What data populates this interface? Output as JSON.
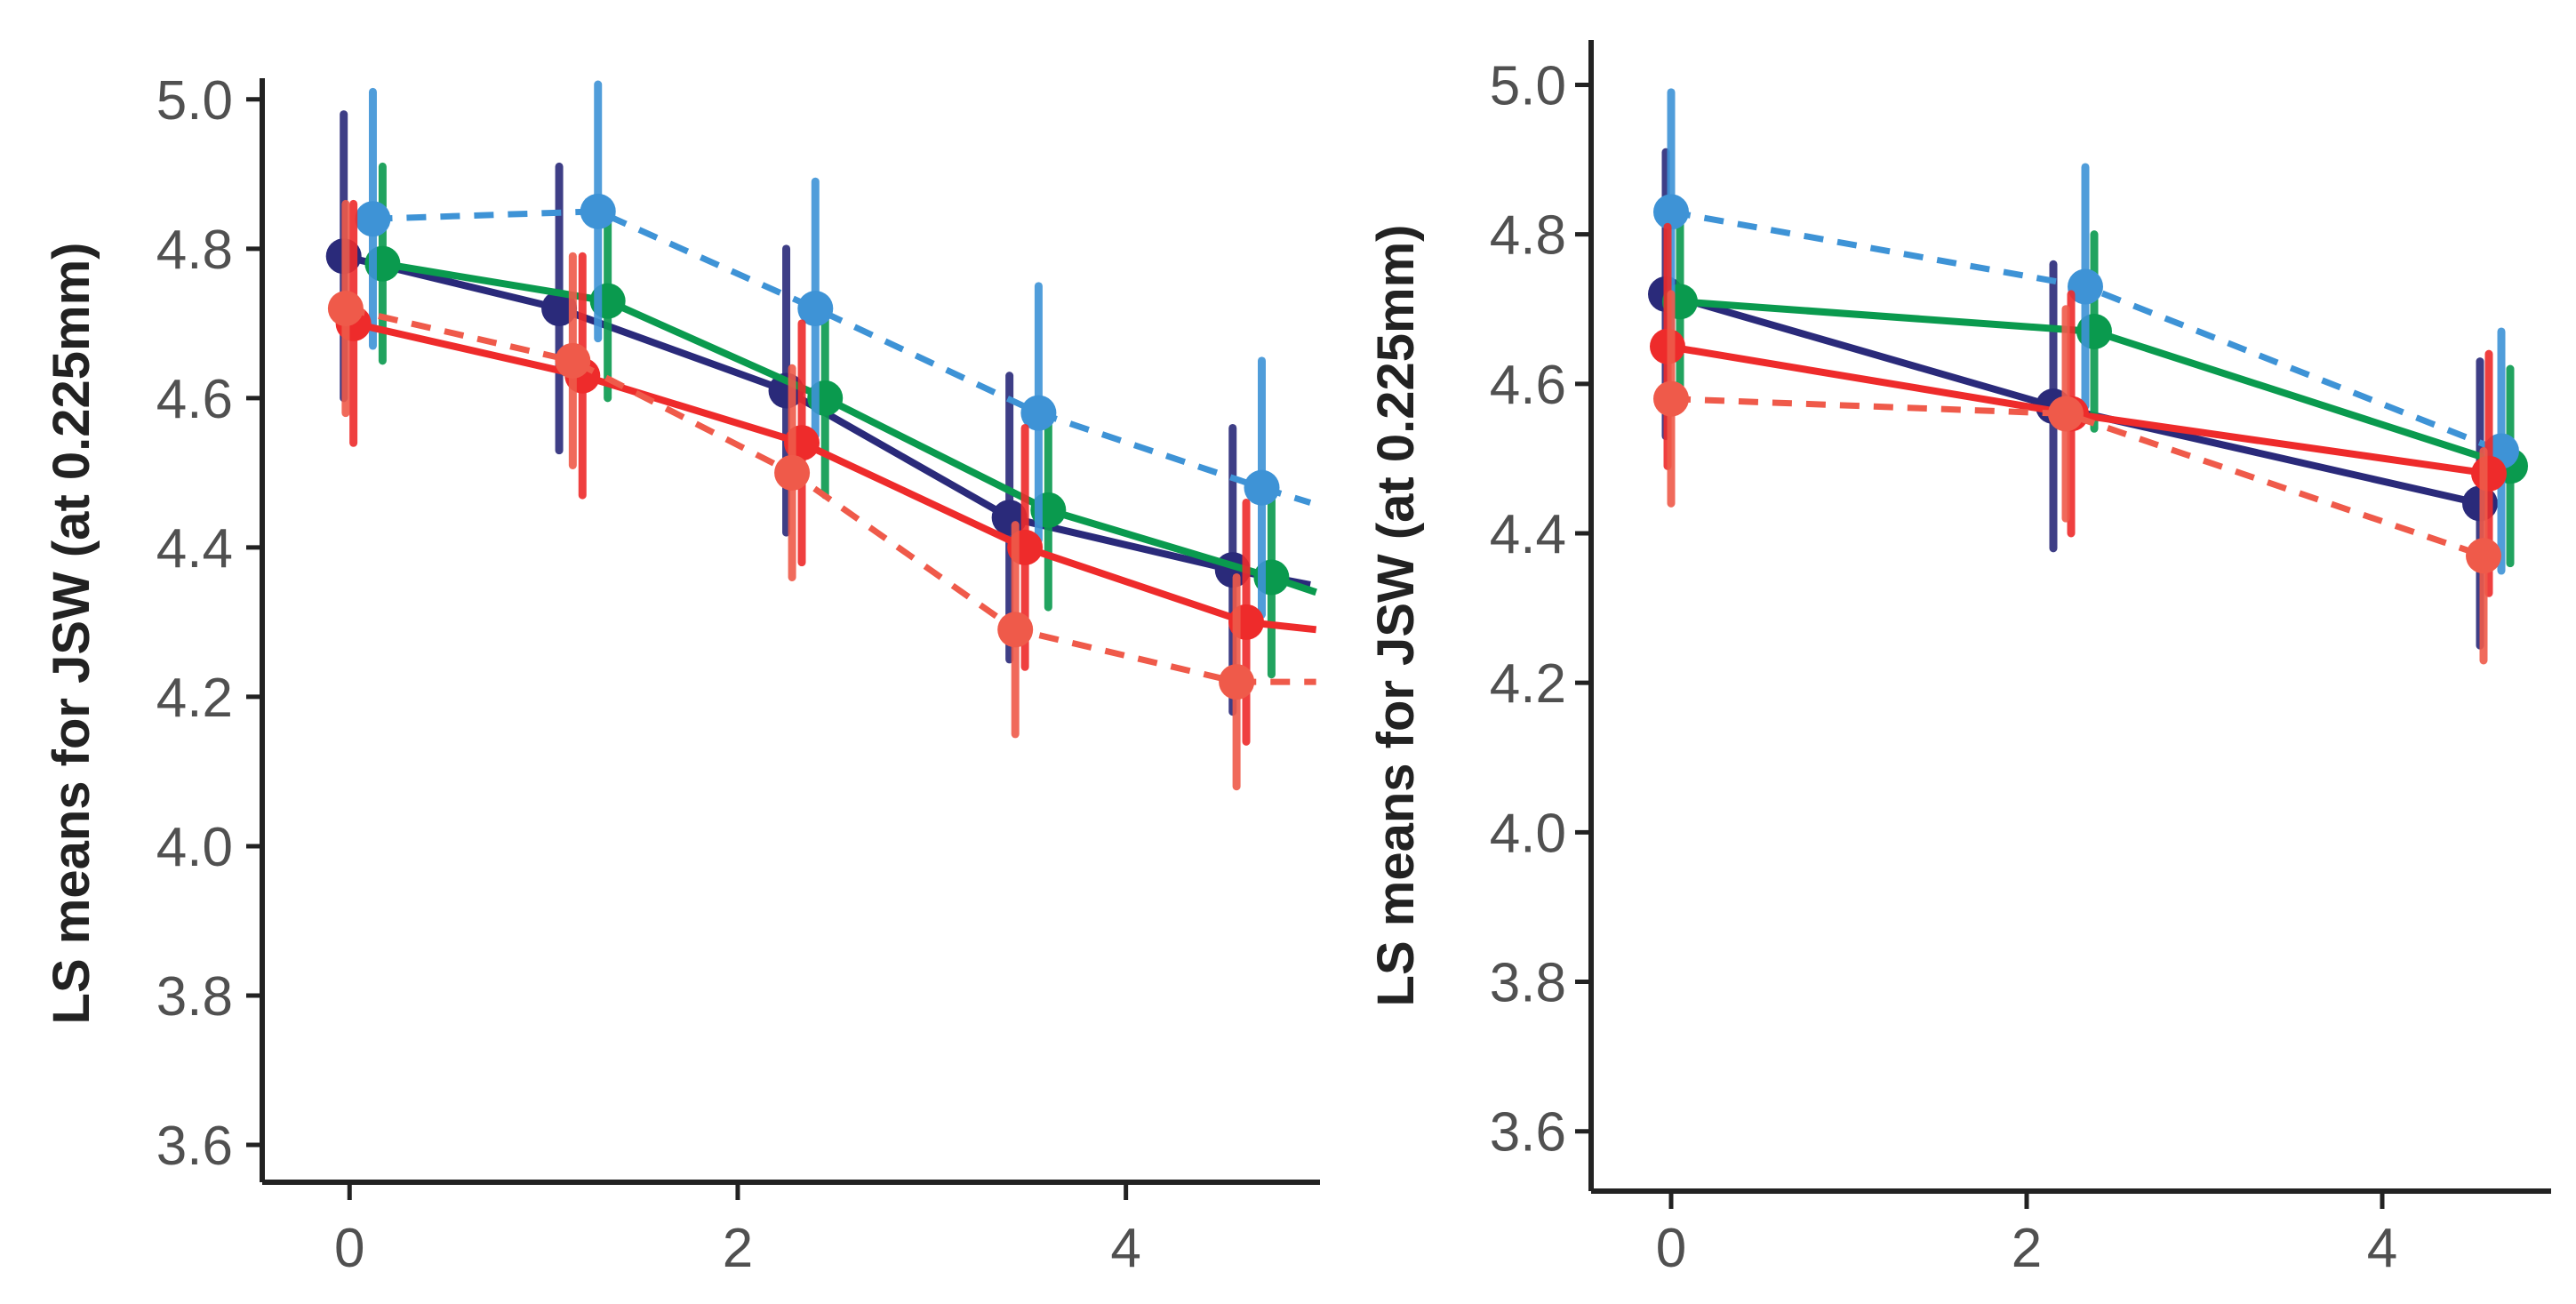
{
  "chart_data": [
    {
      "type": "line",
      "ylabel": "LS means for JSW (at 0.225mm)",
      "xlabel": "",
      "xlim": [
        -0.45,
        5.0
      ],
      "ylim": [
        3.55,
        5.02
      ],
      "xticks": [
        "0",
        "2",
        "4"
      ],
      "yticks": [
        "3.6",
        "3.8",
        "4.0",
        "4.2",
        "4.4",
        "4.6",
        "4.8",
        "5.0"
      ],
      "series": [
        {
          "name": "navy",
          "color": "#2a2a7a",
          "dashed": false,
          "x": [
            -0.03,
            1.08,
            2.25,
            3.4,
            4.55
          ],
          "y": [
            4.79,
            4.72,
            4.61,
            4.44,
            4.37
          ],
          "err": [
            0.19,
            0.19,
            0.19,
            0.19,
            0.19
          ],
          "x_end": 4.95,
          "y_end": 4.35
        },
        {
          "name": "green",
          "color": "#0a9a4e",
          "dashed": false,
          "x": [
            0.17,
            1.33,
            2.45,
            3.6,
            4.75
          ],
          "y": [
            4.78,
            4.73,
            4.6,
            4.45,
            4.36
          ],
          "err": [
            0.13,
            0.13,
            0.13,
            0.13,
            0.13
          ],
          "x_end": 4.98,
          "y_end": 4.34
        },
        {
          "name": "blue-dashed",
          "color": "#3e93d6",
          "dashed": true,
          "x": [
            0.12,
            1.28,
            2.4,
            3.55,
            4.7
          ],
          "y": [
            4.84,
            4.85,
            4.72,
            4.58,
            4.48
          ],
          "err": [
            0.17,
            0.17,
            0.17,
            0.17,
            0.17
          ],
          "x_end": 4.95,
          "y_end": 4.46
        },
        {
          "name": "red",
          "color": "#ee2b2b",
          "dashed": false,
          "x": [
            0.02,
            1.2,
            2.33,
            3.48,
            4.62
          ],
          "y": [
            4.7,
            4.63,
            4.54,
            4.4,
            4.3
          ],
          "err": [
            0.16,
            0.16,
            0.16,
            0.16,
            0.16
          ],
          "x_end": 4.98,
          "y_end": 4.29
        },
        {
          "name": "red-dashed",
          "color": "#ef5a4a",
          "dashed": true,
          "x": [
            -0.02,
            1.15,
            2.28,
            3.43,
            4.57
          ],
          "y": [
            4.72,
            4.65,
            4.5,
            4.29,
            4.22
          ],
          "err": [
            0.14,
            0.14,
            0.14,
            0.14,
            0.14
          ],
          "x_end": 4.98,
          "y_end": 4.22
        }
      ]
    },
    {
      "type": "line",
      "ylabel": "LS means for JSW (at 0.225mm)",
      "xlabel": "",
      "xlim": [
        -0.45,
        4.95
      ],
      "ylim": [
        3.52,
        5.06
      ],
      "xticks": [
        "0",
        "2",
        "4"
      ],
      "yticks": [
        "3.6",
        "3.8",
        "4.0",
        "4.2",
        "4.4",
        "4.6",
        "4.8",
        "5.0"
      ],
      "series": [
        {
          "name": "navy",
          "color": "#2a2a7a",
          "dashed": false,
          "x": [
            -0.03,
            2.15,
            4.55
          ],
          "y": [
            4.72,
            4.57,
            4.44
          ],
          "err": [
            0.19,
            0.19,
            0.19
          ]
        },
        {
          "name": "green",
          "color": "#0a9a4e",
          "dashed": false,
          "x": [
            0.05,
            2.38,
            4.72
          ],
          "y": [
            4.71,
            4.67,
            4.49
          ],
          "err": [
            0.13,
            0.13,
            0.13
          ]
        },
        {
          "name": "blue-dashed",
          "color": "#3e93d6",
          "dashed": true,
          "x": [
            0.0,
            2.33,
            4.67
          ],
          "y": [
            4.83,
            4.73,
            4.51
          ],
          "err": [
            0.16,
            0.16,
            0.16
          ]
        },
        {
          "name": "red",
          "color": "#ee2b2b",
          "dashed": false,
          "x": [
            -0.02,
            2.25,
            4.6
          ],
          "y": [
            4.65,
            4.56,
            4.48
          ],
          "err": [
            0.16,
            0.16,
            0.16
          ]
        },
        {
          "name": "red-dashed",
          "color": "#ef5a4a",
          "dashed": true,
          "x": [
            0.0,
            2.22,
            4.57
          ],
          "y": [
            4.58,
            4.56,
            4.37
          ],
          "err": [
            0.14,
            0.14,
            0.14
          ]
        }
      ]
    }
  ]
}
